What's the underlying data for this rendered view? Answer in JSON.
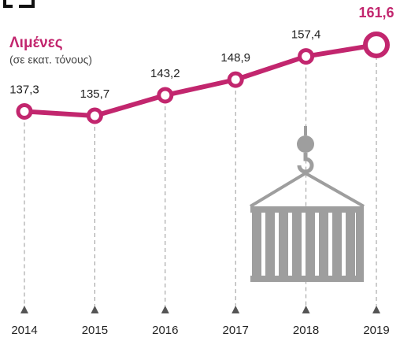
{
  "chart_data": {
    "type": "line",
    "title": "Λιμένες",
    "subtitle": "(σε εκατ. τόνους)",
    "categories": [
      "2014",
      "2015",
      "2016",
      "2017",
      "2018",
      "2019"
    ],
    "values": [
      137.3,
      135.7,
      143.2,
      148.9,
      157.4,
      161.6
    ],
    "value_labels": [
      "137,3",
      "135,7",
      "143,2",
      "148,9",
      "157,4",
      "161,6"
    ],
    "color": "#c2266e"
  }
}
